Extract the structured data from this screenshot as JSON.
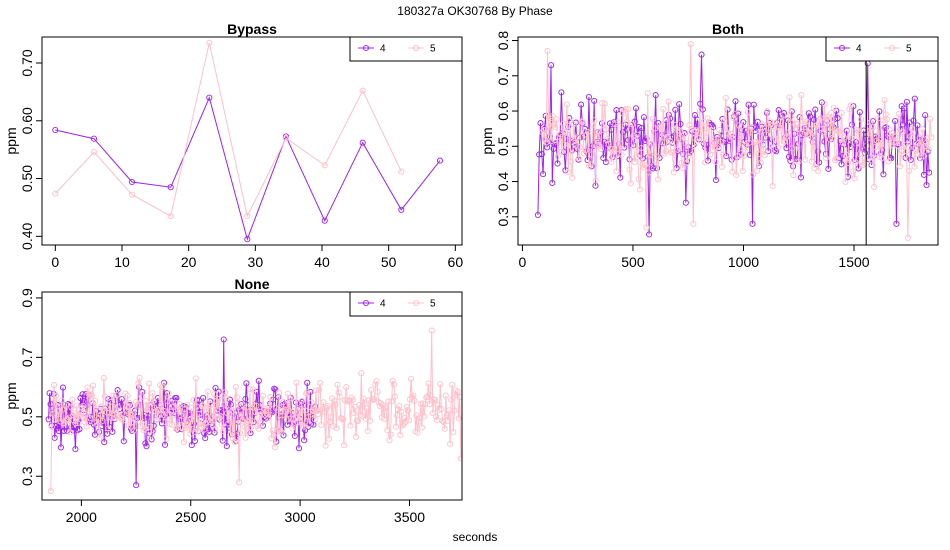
{
  "page": {
    "title": "180327a    OK30768   By Phase",
    "xlabel": "seconds"
  },
  "chart_data": [
    {
      "type": "line",
      "title": "Bypass",
      "ylabel": "ppm",
      "xlabel": "",
      "xlim": [
        -2,
        61
      ],
      "ylim": [
        0.385,
        0.745
      ],
      "xticks": [
        0,
        10,
        20,
        30,
        40,
        50,
        60
      ],
      "yticks": [
        0.4,
        0.5,
        0.6,
        0.7
      ],
      "ytick_labels": [
        "0.40",
        "0.50",
        "0.60",
        "0.70"
      ],
      "legend": {
        "position": "top-right",
        "entries": [
          "4",
          "5"
        ]
      },
      "series": [
        {
          "name": "4",
          "color": "#a020f0",
          "x": [
            0,
            5.8,
            11.5,
            17.3,
            23.1,
            28.8,
            34.6,
            40.4,
            46.1,
            51.9,
            57.7
          ],
          "y": [
            0.584,
            0.569,
            0.494,
            0.485,
            0.64,
            0.395,
            0.573,
            0.427,
            0.562,
            0.446,
            0.531
          ]
        },
        {
          "name": "5",
          "color": "#ffc0cb",
          "x": [
            0,
            5.8,
            11.5,
            17.3,
            23.1,
            28.8,
            34.6,
            40.4,
            46.1,
            51.9
          ],
          "y": [
            0.474,
            0.546,
            0.472,
            0.435,
            0.735,
            0.435,
            0.57,
            0.523,
            0.652,
            0.512
          ]
        }
      ]
    },
    {
      "type": "line",
      "title": "Both",
      "ylabel": "ppm",
      "xlabel": "",
      "xlim": [
        -20,
        1880
      ],
      "ylim": [
        0.22,
        0.81
      ],
      "xticks": [
        0,
        500,
        1000,
        1500
      ],
      "yticks": [
        0.3,
        0.4,
        0.5,
        0.6,
        0.7,
        0.8
      ],
      "ytick_labels": [
        "0.3",
        "0.4",
        "0.5",
        "0.6",
        "0.7",
        "0.8"
      ],
      "legend": {
        "position": "top-right",
        "entries": [
          "4",
          "5"
        ]
      },
      "vline": 1555,
      "series": [
        {
          "name": "4",
          "color": "#a020f0",
          "x_start": 70,
          "x_end": 1840,
          "n": 300,
          "mean": 0.52,
          "spread": 0.095,
          "peaks": [
            [
              70,
              0.305
            ],
            [
              130,
              0.73
            ],
            [
              576,
              0.25
            ],
            [
              740,
              0.34
            ],
            [
              810,
              0.76
            ],
            [
              1040,
              0.28
            ],
            [
              1560,
              0.735
            ],
            [
              1690,
              0.28
            ],
            [
              1830,
              0.39
            ]
          ]
        },
        {
          "name": "5",
          "color": "#ffc0cb",
          "x_start": 90,
          "x_end": 1850,
          "n": 300,
          "mean": 0.52,
          "spread": 0.1,
          "peaks": [
            [
              115,
              0.77
            ],
            [
              560,
              0.27
            ],
            [
              760,
              0.79
            ],
            [
              770,
              0.28
            ],
            [
              1745,
              0.24
            ],
            [
              1840,
              0.49
            ]
          ]
        }
      ]
    },
    {
      "type": "line",
      "title": "None",
      "ylabel": "ppm",
      "xlabel": "",
      "xlim": [
        1820,
        3740
      ],
      "ylim": [
        0.22,
        0.92
      ],
      "xticks": [
        2000,
        2500,
        3000,
        3500
      ],
      "yticks": [
        0.3,
        0.5,
        0.7,
        0.9
      ],
      "ytick_labels": [
        "0.3",
        "0.5",
        "0.7",
        "0.9"
      ],
      "legend": {
        "position": "top-right",
        "entries": [
          "4",
          "5"
        ]
      },
      "series": [
        {
          "name": "4",
          "color": "#a020f0",
          "x_start": 1850,
          "x_end": 3070,
          "n": 260,
          "mean": 0.51,
          "spread": 0.085,
          "peaks": [
            [
              2250,
              0.27
            ],
            [
              2650,
              0.76
            ]
          ]
        },
        {
          "name": "5",
          "color": "#ffc0cb",
          "x_start": 1860,
          "x_end": 3735,
          "n": 380,
          "mean": 0.52,
          "spread": 0.09,
          "peaks": [
            [
              1858,
              0.25
            ],
            [
              2720,
              0.28
            ],
            [
              3600,
              0.79
            ],
            [
              3735,
              0.36
            ]
          ]
        }
      ]
    }
  ]
}
